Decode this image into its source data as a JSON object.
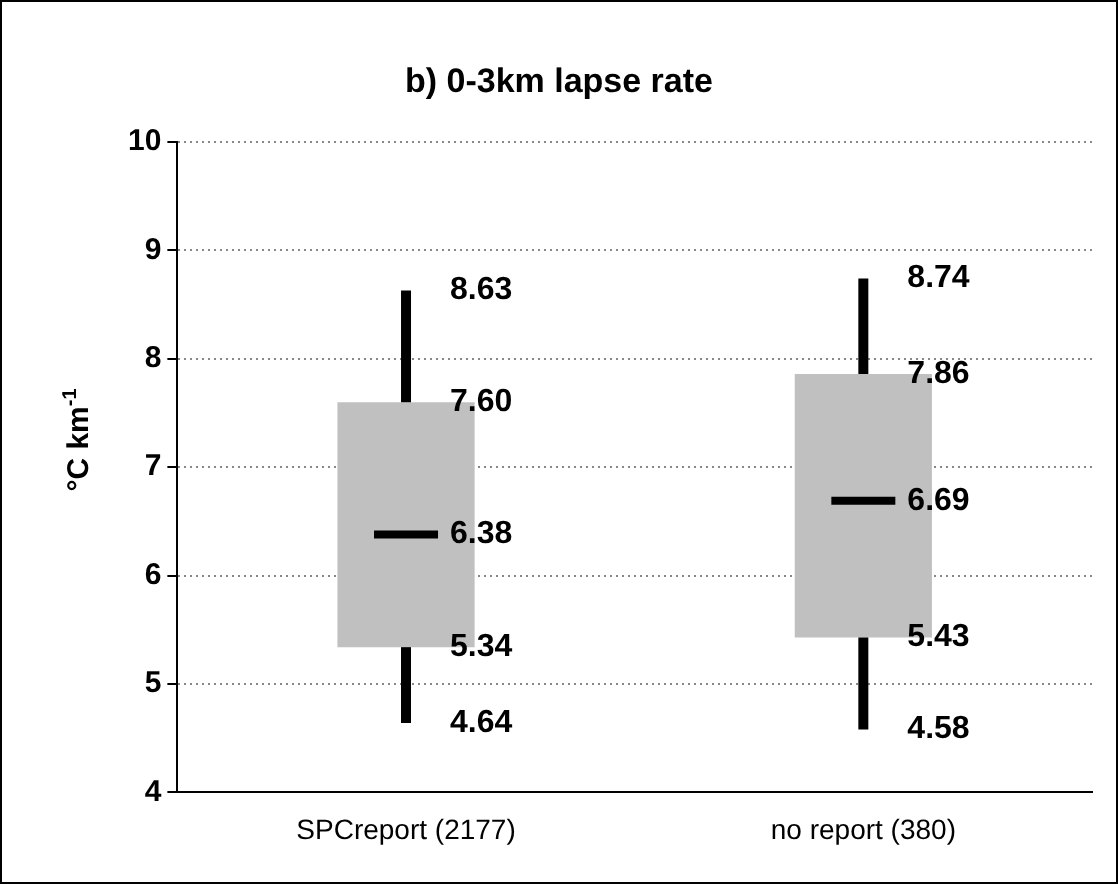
{
  "chart_data": {
    "type": "box",
    "title": "b) 0-3km lapse rate",
    "ylabel": "°C km$^{-1}$",
    "categories": [
      "SPCreport (2177)",
      "no report (380)"
    ],
    "series": [
      {
        "color": "#c0c0c0",
        "boxes": [
          {
            "low": 4.64,
            "q1": 5.34,
            "median": 6.38,
            "q3": 7.6,
            "high": 8.63
          },
          {
            "low": 4.58,
            "q1": 5.43,
            "median": 6.69,
            "q3": 7.86,
            "high": 8.74
          }
        ]
      }
    ],
    "annotations": [
      {
        "text": "8.63",
        "x": "SPCreport (2177)",
        "y": 8.63
      },
      {
        "text": "7.60",
        "x": "SPCreport (2177)",
        "y": 7.6
      },
      {
        "text": "6.38",
        "x": "SPCreport (2177)",
        "y": 6.38
      },
      {
        "text": "5.34",
        "x": "SPCreport (2177)",
        "y": 5.34
      },
      {
        "text": "4.64",
        "x": "SPCreport (2177)",
        "y": 4.64
      },
      {
        "text": "8.74",
        "x": "no report (380)",
        "y": 8.74
      },
      {
        "text": "7.86",
        "x": "no report (380)",
        "y": 7.86
      },
      {
        "text": "6.69",
        "x": "no report (380)",
        "y": 6.69
      },
      {
        "text": "5.43",
        "x": "no report (380)",
        "y": 5.43
      },
      {
        "text": "4.58",
        "x": "no report (380)",
        "y": 4.58
      }
    ],
    "ylim": [
      4,
      10
    ],
    "yticks": [
      4,
      5,
      6,
      7,
      8,
      9,
      10
    ],
    "grid": "y",
    "legend": false
  }
}
